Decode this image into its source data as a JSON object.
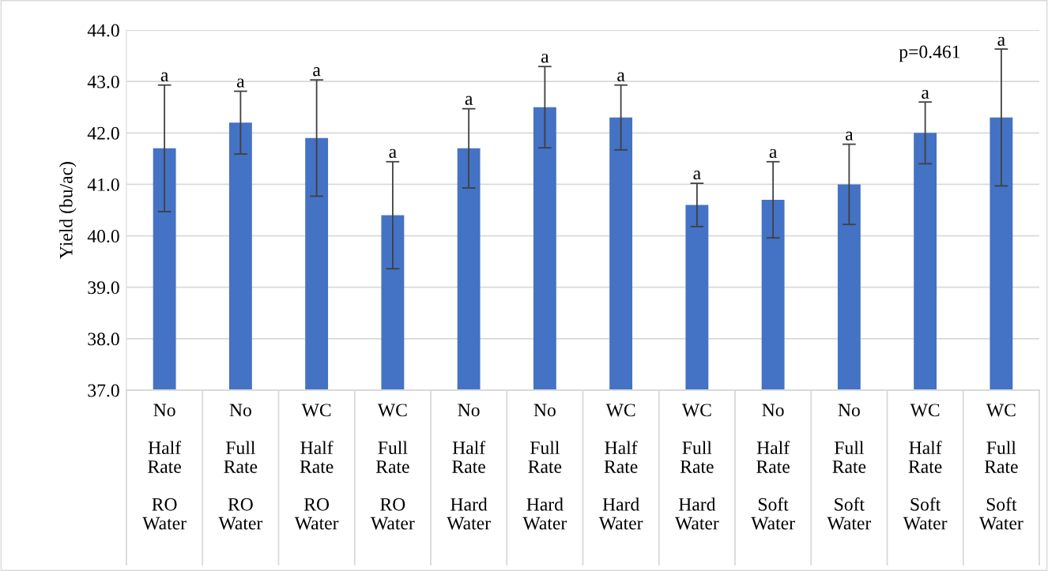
{
  "chart_data": {
    "type": "bar",
    "ylabel": "Yield (bu/ac)",
    "categories": [
      "No\nHalf Rate\nRO Water",
      "No\nFull Rate\nRO Water",
      "WC\nHalf Rate\nRO Water",
      "WC\nFull Rate\nRO Water",
      "No\nHalf Rate\nHard Water",
      "No\nFull Rate\nHard Water",
      "WC\nHalf Rate\nHard Water",
      "WC\nFull Rate\nHard Water",
      "No\nHalf Rate\nSoft Water",
      "No\nFull Rate\nSoft Water",
      "WC\nHalf Rate\nSoft Water",
      "WC\nFull Rate\nSoft Water"
    ],
    "values": [
      41.7,
      42.2,
      41.9,
      40.4,
      41.7,
      42.5,
      42.3,
      40.6,
      40.7,
      41.0,
      42.0,
      42.3
    ],
    "errors": [
      1.23,
      0.61,
      1.13,
      1.04,
      0.77,
      0.79,
      0.63,
      0.42,
      0.74,
      0.78,
      0.6,
      1.33
    ],
    "color": "#4472c4",
    "ylim": [
      37.0,
      44.0
    ],
    "yticks": [
      {
        "value": 37,
        "label": "37.0"
      },
      {
        "value": 38,
        "label": "38.0"
      },
      {
        "value": 39,
        "label": "39.0"
      },
      {
        "value": 40,
        "label": "40.0"
      },
      {
        "value": 41,
        "label": "41.0"
      },
      {
        "value": 42,
        "label": "42.0"
      },
      {
        "value": 43,
        "label": "43.0"
      },
      {
        "value": 44,
        "label": "44.0"
      }
    ],
    "grid": "y",
    "annotations": [
      "p=0.461",
      {
        "text": "a",
        "x": "No\nHalf Rate\nRO Water",
        "y": 42.93
      },
      {
        "text": "a",
        "x": "No\nFull Rate\nRO Water",
        "y": 42.81
      },
      {
        "text": "a",
        "x": "WC\nHalf Rate\nRO Water",
        "y": 43.03
      },
      {
        "text": "a",
        "x": "WC\nFull Rate\nRO Water",
        "y": 41.44
      },
      {
        "text": "a",
        "x": "No\nHalf Rate\nHard Water",
        "y": 42.47
      },
      {
        "text": "a",
        "x": "No\nFull Rate\nHard Water",
        "y": 43.29
      },
      {
        "text": "a",
        "x": "WC\nHalf Rate\nHard Water",
        "y": 42.93
      },
      {
        "text": "a",
        "x": "WC\nFull Rate\nHard Water",
        "y": 41.02
      },
      {
        "text": "a",
        "x": "No\nHalf Rate\nSoft Water",
        "y": 41.44
      },
      {
        "text": "a",
        "x": "No\nFull Rate\nSoft Water",
        "y": 41.78
      },
      {
        "text": "a",
        "x": "WC\nHalf Rate\nSoft Water",
        "y": 42.59
      },
      {
        "text": "a",
        "x": "WC\nFull Rate\nSoft Water",
        "y": 43.62
      }
    ]
  }
}
